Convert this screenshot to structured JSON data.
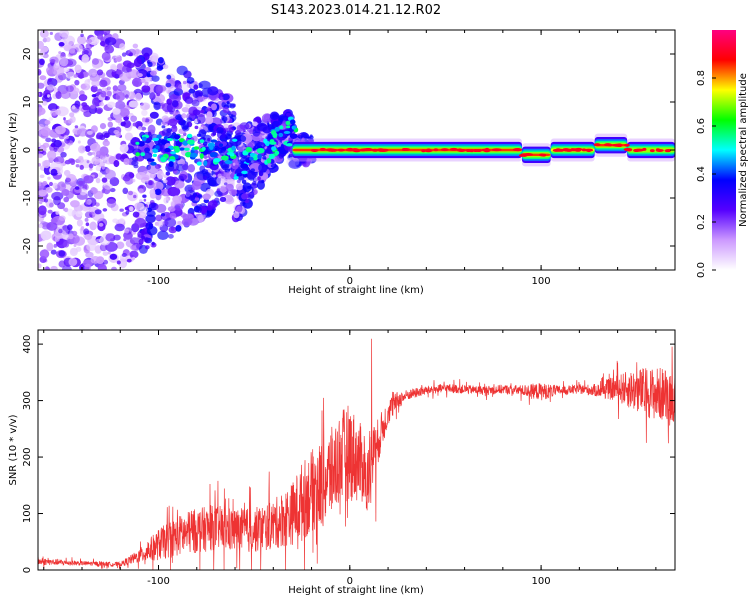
{
  "title": "S143.2023.014.21.12.R02",
  "chart_data": [
    {
      "type": "heatmap",
      "xlabel": "Height of straight line (km)",
      "ylabel": "Frequency (Hz)",
      "xlim": [
        -163,
        170
      ],
      "ylim": [
        -25,
        25
      ],
      "xticks": [
        -100,
        0,
        100
      ],
      "yticks": [
        -20,
        -10,
        0,
        10,
        20
      ],
      "colorbar": {
        "label": "Normalized spectral amplitude",
        "range": [
          0.0,
          1.0
        ],
        "ticks": [
          0.0,
          0.2,
          0.4,
          0.6,
          0.8
        ],
        "colors": [
          "#ffffff",
          "#cc99ff",
          "#5500ff",
          "#0000ff",
          "#00ffff",
          "#00ff00",
          "#ffff00",
          "#ff0000",
          "#ff0080"
        ]
      },
      "ridge": {
        "description_free_segments": [
          {
            "x0": -30,
            "x1": 90,
            "freq": 0.0,
            "amplitude": 0.85
          },
          {
            "x0": 90,
            "x1": 105,
            "freq": -1.0,
            "amplitude": 0.85
          },
          {
            "x0": 105,
            "x1": 128,
            "freq": 0.0,
            "amplitude": 0.75
          },
          {
            "x0": 128,
            "x1": 145,
            "freq": 1.0,
            "amplitude": 0.85
          },
          {
            "x0": 145,
            "x1": 170,
            "freq": 0.0,
            "amplitude": 0.7
          }
        ]
      },
      "diffuse_region": {
        "x0": -163,
        "x1": -30,
        "freq_spread": 25
      }
    },
    {
      "type": "line",
      "xlabel": "Height of straight line (km)",
      "ylabel": "SNR (10 * v/v)",
      "xlim": [
        -163,
        170
      ],
      "ylim": [
        0,
        425
      ],
      "xticks": [
        -100,
        0,
        100
      ],
      "yticks": [
        0,
        100,
        200,
        300,
        400
      ],
      "series": [
        {
          "name": "SNR",
          "color": "#ee3333",
          "x": [
            -163,
            -140,
            -120,
            -110,
            -100,
            -90,
            -80,
            -70,
            -60,
            -50,
            -40,
            -30,
            -25,
            -20,
            -15,
            -10,
            -5,
            0,
            5,
            10,
            15,
            20,
            25,
            30,
            40,
            50,
            60,
            70,
            80,
            90,
            100,
            110,
            120,
            130,
            140,
            150,
            160,
            170
          ],
          "values": [
            15,
            12,
            10,
            25,
            45,
            60,
            70,
            75,
            70,
            70,
            80,
            100,
            120,
            140,
            150,
            170,
            200,
            210,
            190,
            180,
            230,
            280,
            300,
            310,
            318,
            322,
            320,
            318,
            320,
            318,
            316,
            318,
            320,
            318,
            322,
            318,
            312,
            310
          ],
          "noise": [
            8,
            5,
            5,
            15,
            35,
            45,
            50,
            50,
            50,
            50,
            55,
            70,
            90,
            90,
            100,
            100,
            100,
            110,
            90,
            80,
            50,
            30,
            20,
            12,
            10,
            10,
            10,
            10,
            10,
            12,
            20,
            10,
            10,
            15,
            30,
            50,
            60,
            60
          ]
        }
      ]
    }
  ]
}
